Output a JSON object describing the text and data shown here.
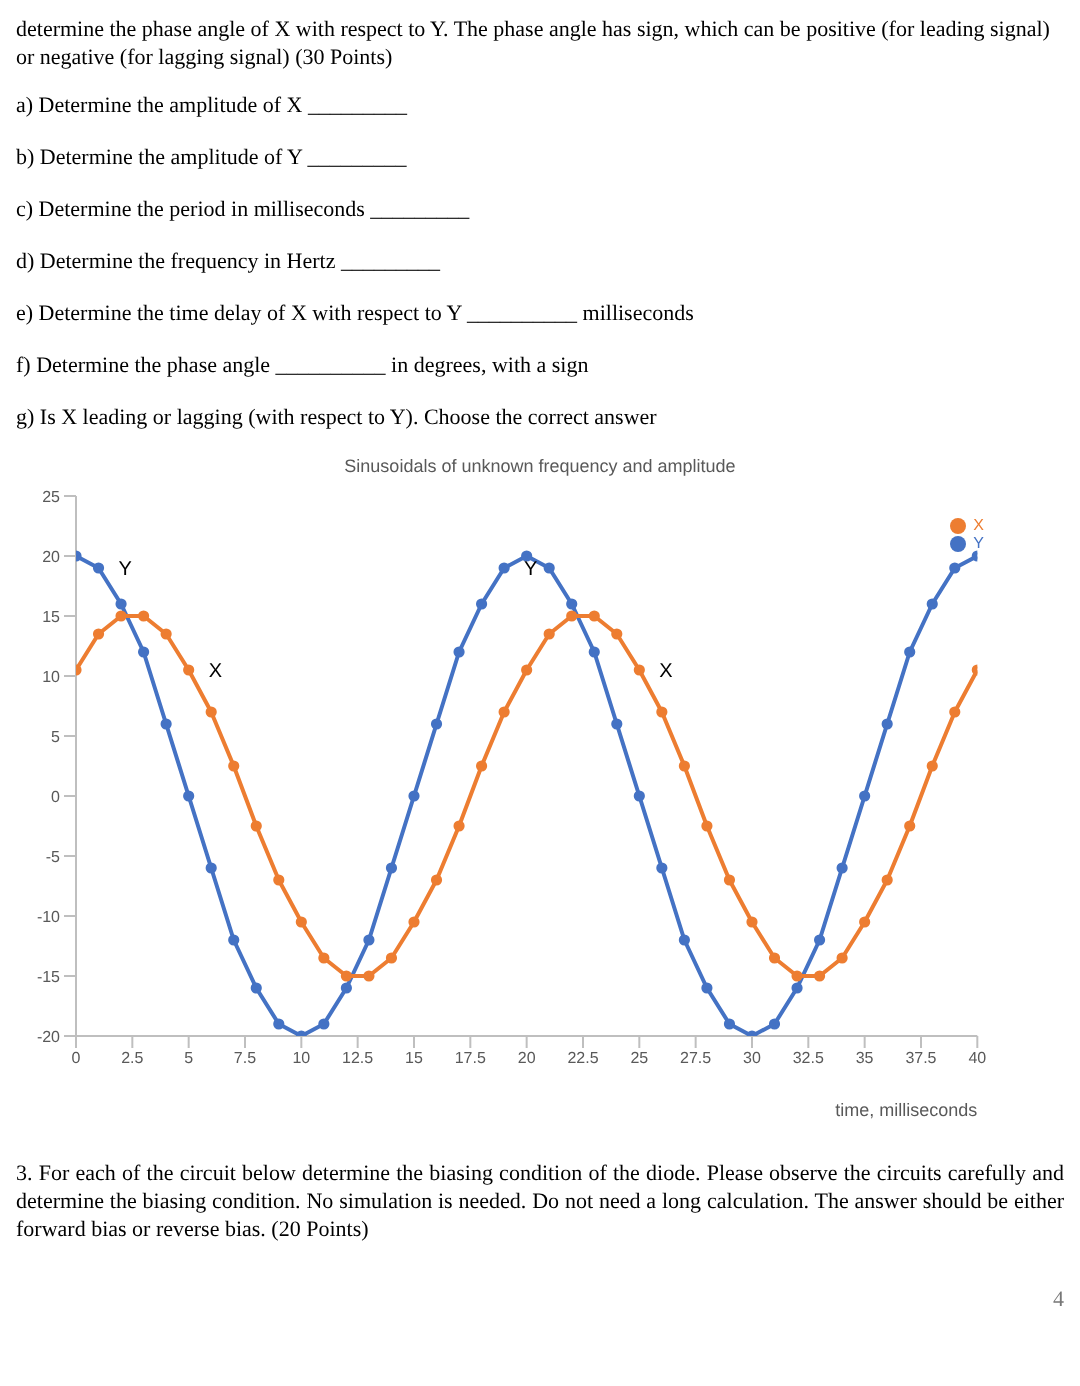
{
  "chart_data": {
    "type": "line",
    "title": "Sinusoidals of unknown frequency and amplitude",
    "xlabel": "time, milliseconds",
    "x": [
      0,
      1,
      2,
      3,
      4,
      5,
      6,
      7,
      8,
      9,
      10,
      11,
      12,
      13,
      14,
      15,
      16,
      17,
      18,
      19,
      20,
      21,
      22,
      23,
      24,
      25,
      26,
      27,
      28,
      29,
      30,
      31,
      32,
      33,
      34,
      35,
      36,
      37,
      38,
      39,
      40
    ],
    "series": [
      {
        "name": "Y",
        "color": "#4472c4",
        "values": [
          20,
          19,
          16,
          12,
          6,
          0,
          -6,
          -12,
          -16,
          -19,
          -20,
          -19,
          -16,
          -12,
          -6,
          0,
          6,
          12,
          16,
          19,
          20,
          19,
          16,
          12,
          6,
          0,
          -6,
          -12,
          -16,
          -19,
          -20,
          -19,
          -16,
          -12,
          -6,
          0,
          6,
          12,
          16,
          19,
          20
        ]
      },
      {
        "name": "X",
        "color": "#ed7d31",
        "values": [
          10.5,
          13.5,
          15,
          15,
          13.5,
          10.5,
          7,
          2.5,
          -2.5,
          -7,
          -10.5,
          -13.5,
          -15,
          -15,
          -13.5,
          -10.5,
          -7,
          -2.5,
          2.5,
          7,
          10.5,
          13.5,
          15,
          15,
          13.5,
          10.5,
          7,
          2.5,
          -2.5,
          -7,
          -10.5,
          -13.5,
          -15,
          -15,
          -13.5,
          -10.5,
          -7,
          -2.5,
          2.5,
          7,
          10.5
        ]
      }
    ],
    "xlim": [
      0,
      40
    ],
    "xticks": [
      0,
      2.5,
      5,
      7.5,
      10,
      12.5,
      15,
      17.5,
      20,
      22.5,
      25,
      27.5,
      30,
      32.5,
      35,
      37.5,
      40
    ],
    "ylim": [
      -20,
      25
    ],
    "yticks": [
      -20,
      -15,
      -10,
      -5,
      0,
      5,
      10,
      15,
      20,
      25
    ],
    "grid": false,
    "legend": "top right",
    "marker": "circle",
    "line_style": "solid",
    "annotations": [
      "determine the phase angle of X with respect to Y. The phase angle has sign, which can be positive (for leading signal) or negative (for lagging signal) (30 Points)",
      "a) Determine the amplitude of X _________",
      "b) Determine the amplitude of Y _________",
      "c) Determine the period in milliseconds _________",
      "d) Determine the frequency in Hertz _________",
      "e) Determine the time delay of X with respect to Y __________ milliseconds",
      "f) Determine the phase angle __________ in degrees, with a sign",
      "g) Is X   leading   or   lagging     (with respect to Y).  Choose the correct answer",
      {
        "text": "Y",
        "x": 1,
        "y": 19
      },
      {
        "text": "X",
        "x": 5,
        "y": 10.5
      },
      {
        "text": "Y",
        "x": 19,
        "y": 19
      },
      {
        "text": "X",
        "x": 25,
        "y": 10.5
      },
      "3. For each of the circuit below determine the biasing condition of the diode. Please observe the circuits carefully and determine the biasing condition. No simulation is needed. Do not need a long calculation. The answer should be either forward bias or reverse bias. (20 Points)",
      "4"
    ]
  }
}
